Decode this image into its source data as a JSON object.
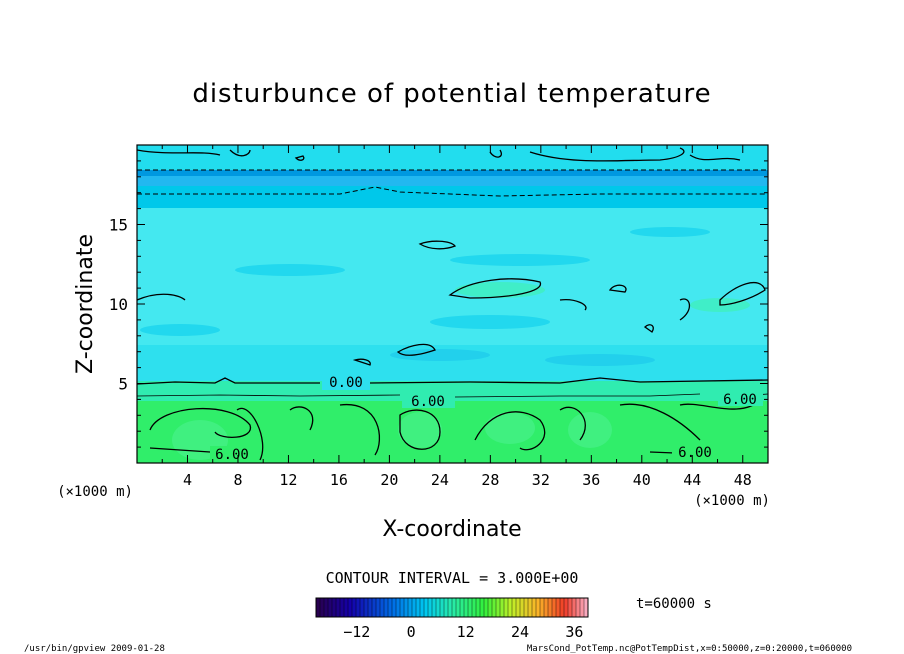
{
  "chart_data": {
    "type": "heatmap",
    "title": "disturbunce of potential temperature",
    "xlabel": "X-coordinate",
    "ylabel": "Z-coordinate",
    "x_unit_left": "(×1000 m)",
    "x_unit_right": "(×1000 m)",
    "xlim": [
      0,
      50
    ],
    "ylim": [
      0,
      20
    ],
    "x_ticks": [
      4,
      8,
      12,
      16,
      20,
      24,
      28,
      32,
      36,
      40,
      44,
      48
    ],
    "y_ticks": [
      5,
      10,
      15
    ],
    "contour_interval": "CONTOUR INTERVAL = 3.000E+00",
    "contour_labels": [
      "0.00",
      "6.00",
      "6.00",
      "6.00",
      "6.00"
    ],
    "colorbar": {
      "ticks": [
        -12,
        0,
        12,
        24,
        36
      ],
      "range": [
        -21,
        39
      ]
    },
    "time_label": "t=60000  s",
    "footer_left": "/usr/bin/gpview   2009-01-28",
    "footer_right": "MarsCond_PotTemp.nc@PotTempDist,x=0:50000,z=0:20000,t=060000"
  },
  "colors": {
    "cyan": "#22ddee",
    "light_cyan": "#44e8f0",
    "deep_cyan": "#00c8ea",
    "teal_green": "#30ecb0",
    "green": "#30ee6a",
    "blue_band": "#0098e0"
  }
}
